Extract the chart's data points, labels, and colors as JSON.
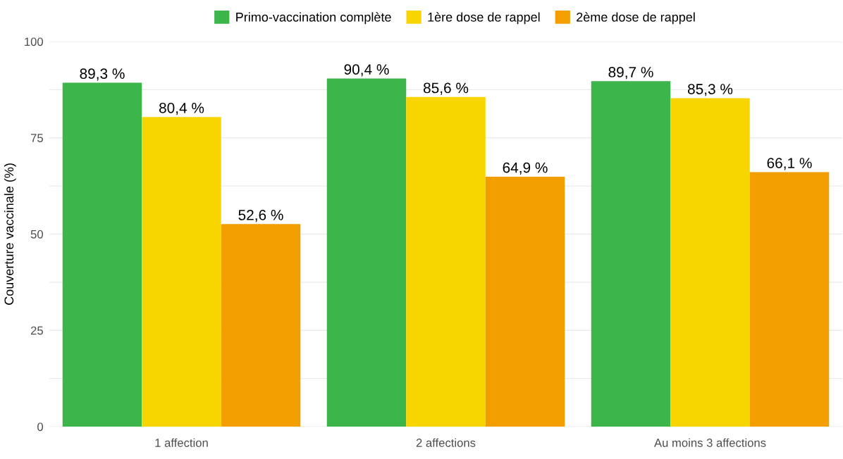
{
  "chart_data": {
    "type": "bar",
    "ylabel": "Couverture vaccinale (%)",
    "categories": [
      "1 affection",
      "2 affections",
      "Au moins 3 affections"
    ],
    "series": [
      {
        "name": "Primo-vaccination complète",
        "color": "#3cb54a",
        "values": [
          89.3,
          90.4,
          89.7
        ],
        "value_labels": [
          "89,3 %",
          "90,4 %",
          "89,7 %"
        ]
      },
      {
        "name": "1ère dose de rappel",
        "color": "#f9d500",
        "values": [
          80.4,
          85.6,
          85.3
        ],
        "value_labels": [
          "80,4 %",
          "85,6 %",
          "85,3 %"
        ]
      },
      {
        "name": "2ème dose de rappel",
        "color": "#f29e00",
        "values": [
          52.6,
          64.9,
          66.1
        ],
        "value_labels": [
          "52,6 %",
          "64,9 %",
          "66,1 %"
        ]
      }
    ],
    "ylim": [
      0,
      100
    ],
    "yticks": [
      0,
      {
        "value": 12.5,
        "label": null
      },
      25,
      {
        "value": 37.5,
        "label": null
      },
      50,
      {
        "value": 62.5,
        "label": null
      },
      75,
      {
        "value": 87.5,
        "label": null
      },
      100
    ],
    "grid": "y",
    "legend": "top"
  }
}
